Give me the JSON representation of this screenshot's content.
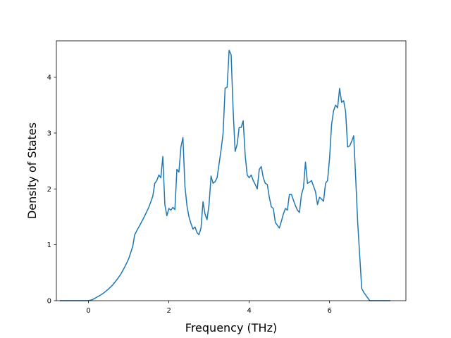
{
  "chart_data": {
    "type": "line",
    "title": "",
    "xlabel": "Frequency (THz)",
    "ylabel": "Density of States",
    "xlim": [
      -0.8,
      7.9
    ],
    "ylim": [
      0,
      4.65
    ],
    "xticks": [
      0,
      2,
      4,
      6
    ],
    "yticks": [
      0,
      1,
      2,
      3,
      4
    ],
    "grid": false,
    "legend": "none",
    "line_color": "#1f77b4",
    "series": [
      {
        "x": [
          -0.7,
          0.0,
          0.1,
          0.2,
          0.3,
          0.4,
          0.5,
          0.6,
          0.7,
          0.8,
          0.9,
          1.0,
          1.1,
          1.15,
          1.2,
          1.3,
          1.4,
          1.5,
          1.6,
          1.65,
          1.7,
          1.75,
          1.8,
          1.85,
          1.9,
          1.95,
          2.0,
          2.05,
          2.1,
          2.15,
          2.2,
          2.25,
          2.3,
          2.35,
          2.4,
          2.45,
          2.5,
          2.55,
          2.6,
          2.65,
          2.7,
          2.75,
          2.8,
          2.85,
          2.9,
          2.95,
          3.0,
          3.05,
          3.1,
          3.15,
          3.2,
          3.25,
          3.3,
          3.35,
          3.4,
          3.45,
          3.5,
          3.55,
          3.6,
          3.65,
          3.7,
          3.75,
          3.8,
          3.85,
          3.9,
          3.95,
          4.0,
          4.05,
          4.1,
          4.15,
          4.2,
          4.25,
          4.3,
          4.35,
          4.4,
          4.45,
          4.5,
          4.55,
          4.6,
          4.65,
          4.7,
          4.75,
          4.8,
          4.85,
          4.9,
          4.95,
          5.0,
          5.05,
          5.1,
          5.15,
          5.2,
          5.25,
          5.3,
          5.35,
          5.4,
          5.45,
          5.5,
          5.55,
          5.6,
          5.65,
          5.7,
          5.75,
          5.8,
          5.85,
          5.9,
          5.95,
          6.0,
          6.05,
          6.1,
          6.15,
          6.2,
          6.25,
          6.3,
          6.35,
          6.4,
          6.45,
          6.5,
          6.55,
          6.6,
          6.65,
          6.7,
          6.8,
          6.85,
          7.0,
          7.5
        ],
        "y": [
          0,
          0,
          0.02,
          0.06,
          0.1,
          0.15,
          0.21,
          0.28,
          0.37,
          0.47,
          0.6,
          0.75,
          0.97,
          1.18,
          1.25,
          1.38,
          1.52,
          1.67,
          1.87,
          2.1,
          2.15,
          2.25,
          2.2,
          2.58,
          1.72,
          1.52,
          1.65,
          1.62,
          1.67,
          1.63,
          2.35,
          2.3,
          2.75,
          2.92,
          2.05,
          1.7,
          1.5,
          1.38,
          1.28,
          1.32,
          1.22,
          1.18,
          1.3,
          1.77,
          1.55,
          1.45,
          1.72,
          2.23,
          2.1,
          2.13,
          2.2,
          2.45,
          2.7,
          3.0,
          3.8,
          3.82,
          4.48,
          4.4,
          3.4,
          2.67,
          2.8,
          3.1,
          3.1,
          3.22,
          2.6,
          2.25,
          2.2,
          2.25,
          2.15,
          2.08,
          2.0,
          2.35,
          2.4,
          2.2,
          2.1,
          2.08,
          1.85,
          1.68,
          1.65,
          1.4,
          1.35,
          1.3,
          1.42,
          1.55,
          1.65,
          1.62,
          1.9,
          1.9,
          1.8,
          1.7,
          1.62,
          1.58,
          1.9,
          2.02,
          2.48,
          2.1,
          2.12,
          2.15,
          2.05,
          1.95,
          1.72,
          1.85,
          1.82,
          1.78,
          2.1,
          2.15,
          2.55,
          3.15,
          3.4,
          3.5,
          3.45,
          3.8,
          3.55,
          3.58,
          3.38,
          2.75,
          2.77,
          2.85,
          2.95,
          2.2,
          1.4,
          0.22,
          0.15,
          0,
          0
        ]
      }
    ]
  }
}
